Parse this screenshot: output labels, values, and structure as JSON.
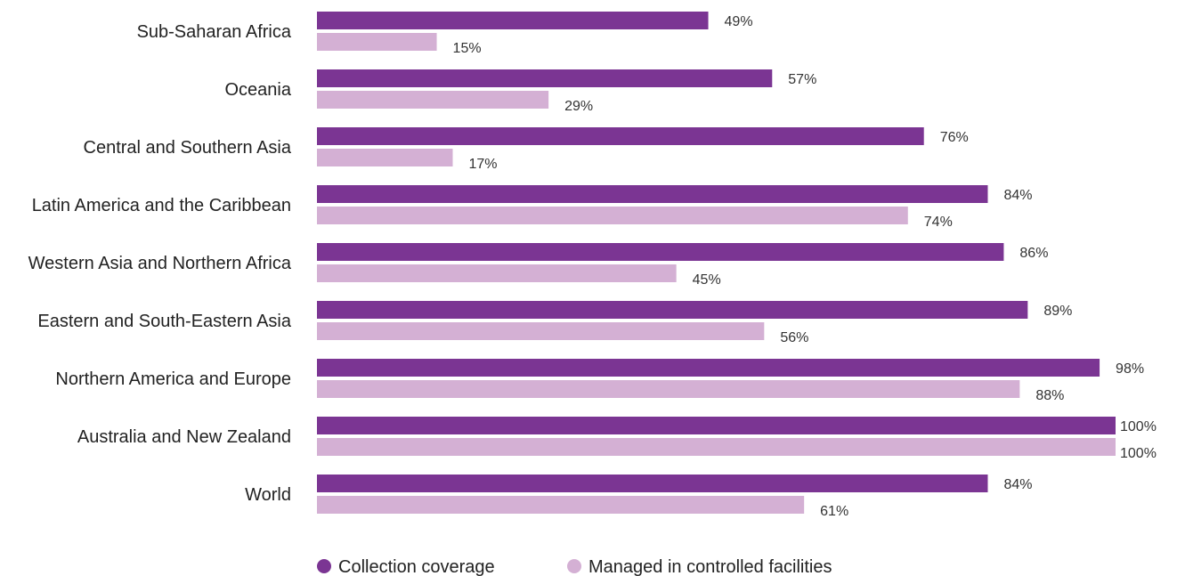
{
  "chart_data": {
    "type": "bar",
    "orientation": "horizontal",
    "categories": [
      "Sub-Saharan Africa",
      "Oceania",
      "Central and Southern Asia",
      "Latin America and the Caribbean",
      "Western Asia and Northern Africa",
      "Eastern and South-Eastern Asia",
      "Northern America and Europe",
      "Australia and New Zealand",
      "World"
    ],
    "series": [
      {
        "name": "Collection coverage",
        "color": "#7b3593",
        "values": [
          49,
          57,
          76,
          84,
          86,
          89,
          98,
          100,
          84
        ],
        "labels": [
          "49%",
          "57%",
          "76%",
          "84%",
          "86%",
          "89%",
          "98%",
          "100%",
          "84%"
        ]
      },
      {
        "name": "Managed in controlled facilities",
        "color": "#d4b0d4",
        "values": [
          15,
          29,
          17,
          74,
          45,
          56,
          88,
          100,
          61
        ],
        "labels": [
          "15%",
          "29%",
          "17%",
          "74%",
          "45%",
          "56%",
          "88%",
          "100%",
          "61%"
        ]
      }
    ],
    "xlim": [
      0,
      100
    ],
    "grid": false,
    "legend_position": "bottom"
  }
}
